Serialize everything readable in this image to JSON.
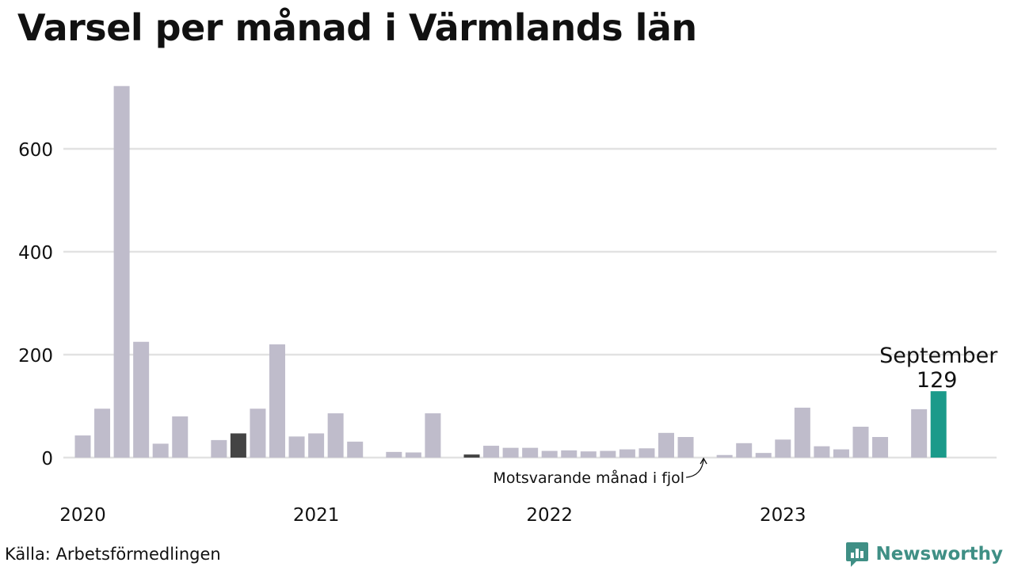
{
  "title": "Varsel per månad i Värmlands län",
  "source": "Källa: Arbetsförmedlingen",
  "brand": {
    "name": "Newsworthy",
    "icon": "chart-speech-bubble-icon"
  },
  "colors": {
    "bar": "#bfbccb",
    "comparison": "#444444",
    "highlight": "#1b9a8a",
    "grid": "#e2e2e2",
    "brand": "#3f8f85"
  },
  "chart_data": {
    "type": "bar",
    "title": "Varsel per månad i Värmlands län",
    "xlabel": "",
    "ylabel": "",
    "ylim": [
      0,
      720
    ],
    "yticks": [
      0,
      200,
      400,
      600
    ],
    "grid": true,
    "x_tick_labels": [
      "2020",
      "2021",
      "2022",
      "2023"
    ],
    "categories": [
      "2020-01",
      "2020-02",
      "2020-03",
      "2020-04",
      "2020-05",
      "2020-06",
      "2020-07",
      "2020-08",
      "2020-09",
      "2020-10",
      "2020-11",
      "2020-12",
      "2021-01",
      "2021-02",
      "2021-03",
      "2021-04",
      "2021-05",
      "2021-06",
      "2021-07",
      "2021-08",
      "2021-09",
      "2021-10",
      "2021-11",
      "2021-12",
      "2022-01",
      "2022-02",
      "2022-03",
      "2022-04",
      "2022-05",
      "2022-06",
      "2022-07",
      "2022-08",
      "2022-09",
      "2022-10",
      "2022-11",
      "2022-12",
      "2023-01",
      "2023-02",
      "2023-03",
      "2023-04",
      "2023-05",
      "2023-06",
      "2023-07",
      "2023-08",
      "2023-09"
    ],
    "values": [
      43,
      95,
      722,
      225,
      27,
      80,
      0,
      34,
      47,
      95,
      220,
      41,
      47,
      86,
      31,
      0,
      11,
      10,
      86,
      0,
      6,
      23,
      19,
      19,
      13,
      14,
      12,
      13,
      16,
      18,
      48,
      40,
      0,
      5,
      28,
      9,
      35,
      97,
      22,
      16,
      60,
      40,
      0,
      94,
      129
    ],
    "comparison_indices": [
      8,
      20
    ],
    "highlight_index": 44,
    "highlight_label": {
      "month": "September",
      "value": "129"
    },
    "annotation": "Motsvarande månad i fjol"
  }
}
